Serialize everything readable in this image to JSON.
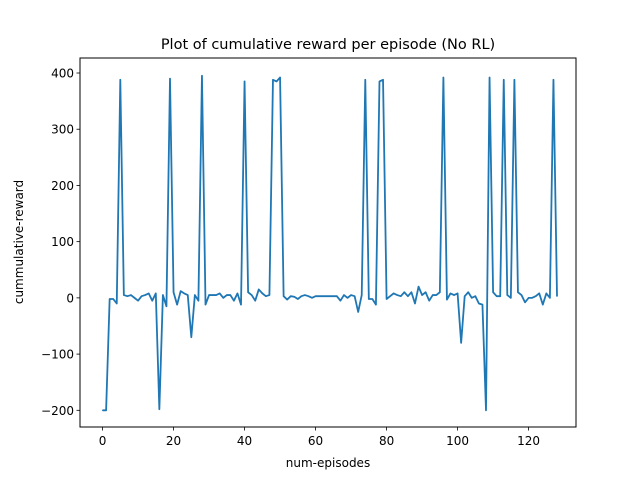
{
  "chart_data": {
    "type": "line",
    "title": "Plot of cumulative reward per episode (No RL)",
    "xlabel": "num-episodes",
    "ylabel": "cummulative-reward",
    "xlim": [
      -6.35,
      133.35
    ],
    "ylim": [
      -229.7,
      426.7
    ],
    "xticks": [
      0,
      20,
      40,
      60,
      80,
      100,
      120
    ],
    "yticks": [
      -200,
      -100,
      0,
      100,
      200,
      300,
      400
    ],
    "grid": false,
    "line_color": "#1f77b4",
    "series": [
      {
        "values": [
          -200,
          -200,
          -2,
          -2,
          -10,
          388,
          5,
          3,
          5,
          0,
          -5,
          3,
          5,
          8,
          -5,
          8,
          -198,
          5,
          -15,
          390,
          10,
          -12,
          12,
          8,
          5,
          -70,
          5,
          -5,
          395,
          -12,
          5,
          5,
          5,
          8,
          0,
          5,
          5,
          -5,
          8,
          -12,
          385,
          10,
          5,
          -5,
          15,
          8,
          3,
          5,
          388,
          385,
          392,
          3,
          -3,
          3,
          2,
          -2,
          3,
          5,
          3,
          0,
          3,
          3,
          3,
          3,
          3,
          3,
          3,
          -5,
          5,
          0,
          5,
          3,
          -25,
          5,
          388,
          -2,
          -2,
          -12,
          385,
          388,
          -2,
          3,
          8,
          5,
          3,
          10,
          3,
          10,
          -10,
          20,
          5,
          10,
          -5,
          5,
          5,
          10,
          392,
          -3,
          8,
          5,
          8,
          -80,
          3,
          10,
          0,
          3,
          -10,
          -12,
          -200,
          392,
          10,
          3,
          3,
          388,
          5,
          0,
          388,
          10,
          5,
          -8,
          0,
          0,
          3,
          8,
          -12,
          8,
          0,
          388,
          3
        ]
      }
    ]
  }
}
